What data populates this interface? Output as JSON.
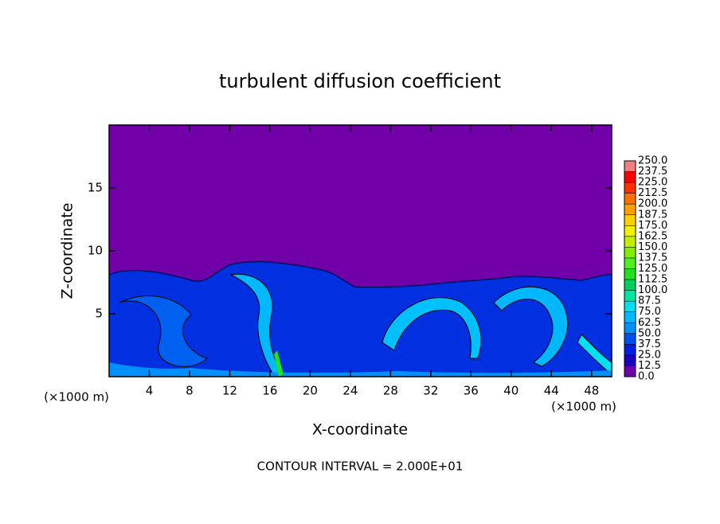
{
  "chart_data": {
    "type": "contour",
    "title": "turbulent diffusion coefficient",
    "xlabel": "X-coordinate",
    "ylabel": "Z-coordinate",
    "x_unit_label": "(×1000 m)",
    "y_unit_label": "(×1000 m)",
    "footer": "CONTOUR INTERVAL = 2.000E+01",
    "xlim": [
      0,
      50
    ],
    "ylim": [
      0,
      20
    ],
    "xticks": [
      4,
      8,
      12,
      16,
      20,
      24,
      28,
      32,
      36,
      40,
      44,
      48
    ],
    "yticks": [
      5,
      10,
      15
    ],
    "background_color": "#7000a8",
    "colorbar": {
      "ticks": [
        {
          "value": 0,
          "label": "0.0"
        },
        {
          "value": 12.5,
          "label": "12.5"
        },
        {
          "value": 25,
          "label": "25.0"
        },
        {
          "value": 37.5,
          "label": "37.5"
        },
        {
          "value": 50,
          "label": "50.0"
        },
        {
          "value": 62.5,
          "label": "62.5"
        },
        {
          "value": 75,
          "label": "75.0"
        },
        {
          "value": 87.5,
          "label": "87.5"
        },
        {
          "value": 100,
          "label": "100.0"
        },
        {
          "value": 112.5,
          "label": "112.5"
        },
        {
          "value": 125,
          "label": "125.0"
        },
        {
          "value": 137.5,
          "label": "137.5"
        },
        {
          "value": 150,
          "label": "150.0"
        },
        {
          "value": 162.5,
          "label": "162.5"
        },
        {
          "value": 175,
          "label": "175.0"
        },
        {
          "value": 187.5,
          "label": "187.5"
        },
        {
          "value": 200,
          "label": "200.0"
        },
        {
          "value": 212.5,
          "label": "212.5"
        },
        {
          "value": 225,
          "label": "225.0"
        },
        {
          "value": 237.5,
          "label": "237.5"
        },
        {
          "value": 250,
          "label": "250.0"
        }
      ],
      "colors": [
        "#7000a8",
        "#1a00c0",
        "#0020e0",
        "#0050f0",
        "#0090ff",
        "#00b8ff",
        "#00e0f0",
        "#00e8a0",
        "#00d060",
        "#20e020",
        "#50f020",
        "#80f000",
        "#c0f000",
        "#f0f000",
        "#ffd000",
        "#ffa000",
        "#ff7000",
        "#ff3000",
        "#ff0000",
        "#f08080"
      ]
    }
  }
}
